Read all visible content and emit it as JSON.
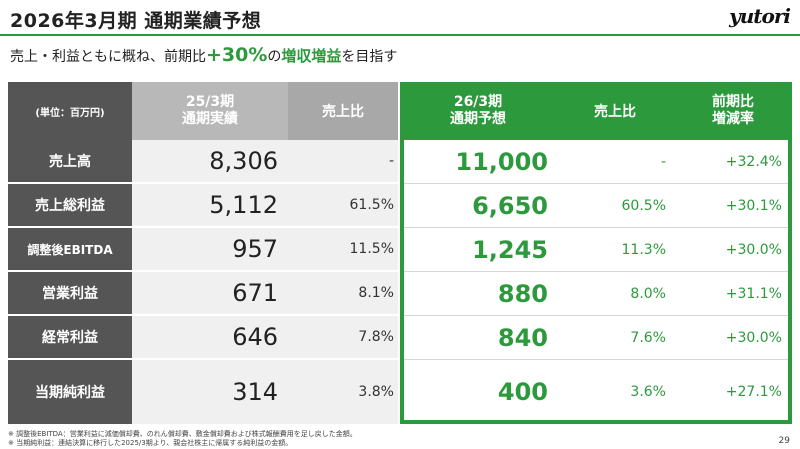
{
  "header": {
    "title": "2026年3月期 通期業績予想",
    "logo": "yutori"
  },
  "subtitle": {
    "prefix": "売上・利益ともに概ね、前期比",
    "highlight": "+30%",
    "no": "の",
    "highlight2": "増収増益",
    "suffix": "を目指す"
  },
  "table": {
    "headers": {
      "unit": "(単位：百万円)",
      "prev_line1": "25/3期",
      "prev_line2": "通期実績",
      "prev_ratio": "売上比",
      "fcst_line1": "26/3期",
      "fcst_line2": "通期予想",
      "fcst_ratio": "売上比",
      "yoy_line1": "前期比",
      "yoy_line2": "増減率"
    },
    "rows": [
      {
        "label": "売上高",
        "prev": "8,306",
        "prev_ratio": "-",
        "fcst": "11,000",
        "fcst_ratio": "-",
        "yoy": "+32.4%"
      },
      {
        "label": "売上総利益",
        "prev": "5,112",
        "prev_ratio": "61.5%",
        "fcst": "6,650",
        "fcst_ratio": "60.5%",
        "yoy": "+30.1%"
      },
      {
        "label": "調整後EBITDA",
        "prev": "957",
        "prev_ratio": "11.5%",
        "fcst": "1,245",
        "fcst_ratio": "11.3%",
        "yoy": "+30.0%"
      },
      {
        "label": "営業利益",
        "prev": "671",
        "prev_ratio": "8.1%",
        "fcst": "880",
        "fcst_ratio": "8.0%",
        "yoy": "+31.1%"
      },
      {
        "label": "経常利益",
        "prev": "646",
        "prev_ratio": "7.8%",
        "fcst": "840",
        "fcst_ratio": "7.6%",
        "yoy": "+30.0%"
      },
      {
        "label": "当期純利益",
        "prev": "314",
        "prev_ratio": "3.8%",
        "fcst": "400",
        "fcst_ratio": "3.6%",
        "yoy": "+27.1%"
      }
    ]
  },
  "notes": [
    "※ 調整後EBITDA：営業利益に減価償却費、のれん償却費、敷金償却費および株式報酬費用を足し戻した金額。",
    "※ 当期純利益：連結決算に移行した2025/3期より、親会社株主に帰属する純利益の金額。"
  ],
  "page_number": "29",
  "colors": {
    "accent_green": "#2c9a3c",
    "label_gray": "#555555",
    "prev_header_gray": "#b8b8b8"
  }
}
